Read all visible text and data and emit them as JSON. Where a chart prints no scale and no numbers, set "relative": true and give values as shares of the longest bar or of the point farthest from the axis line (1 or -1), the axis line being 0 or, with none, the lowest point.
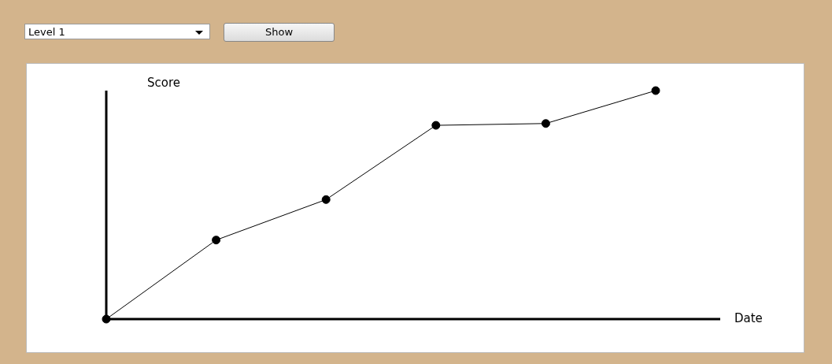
{
  "chart_data": {
    "type": "line",
    "xlabel": "Date",
    "ylabel": "Score",
    "relative": true,
    "categories": [
      null,
      null,
      null,
      null,
      null,
      null
    ],
    "series": [
      {
        "color": "#000000",
        "values": [
          0,
          0.346,
          0.523,
          0.848,
          0.856,
          1
        ]
      }
    ],
    "marker": "circle",
    "line_style": "solid",
    "legend": false,
    "annotations": [
      "Level 1",
      "Show"
    ]
  }
}
